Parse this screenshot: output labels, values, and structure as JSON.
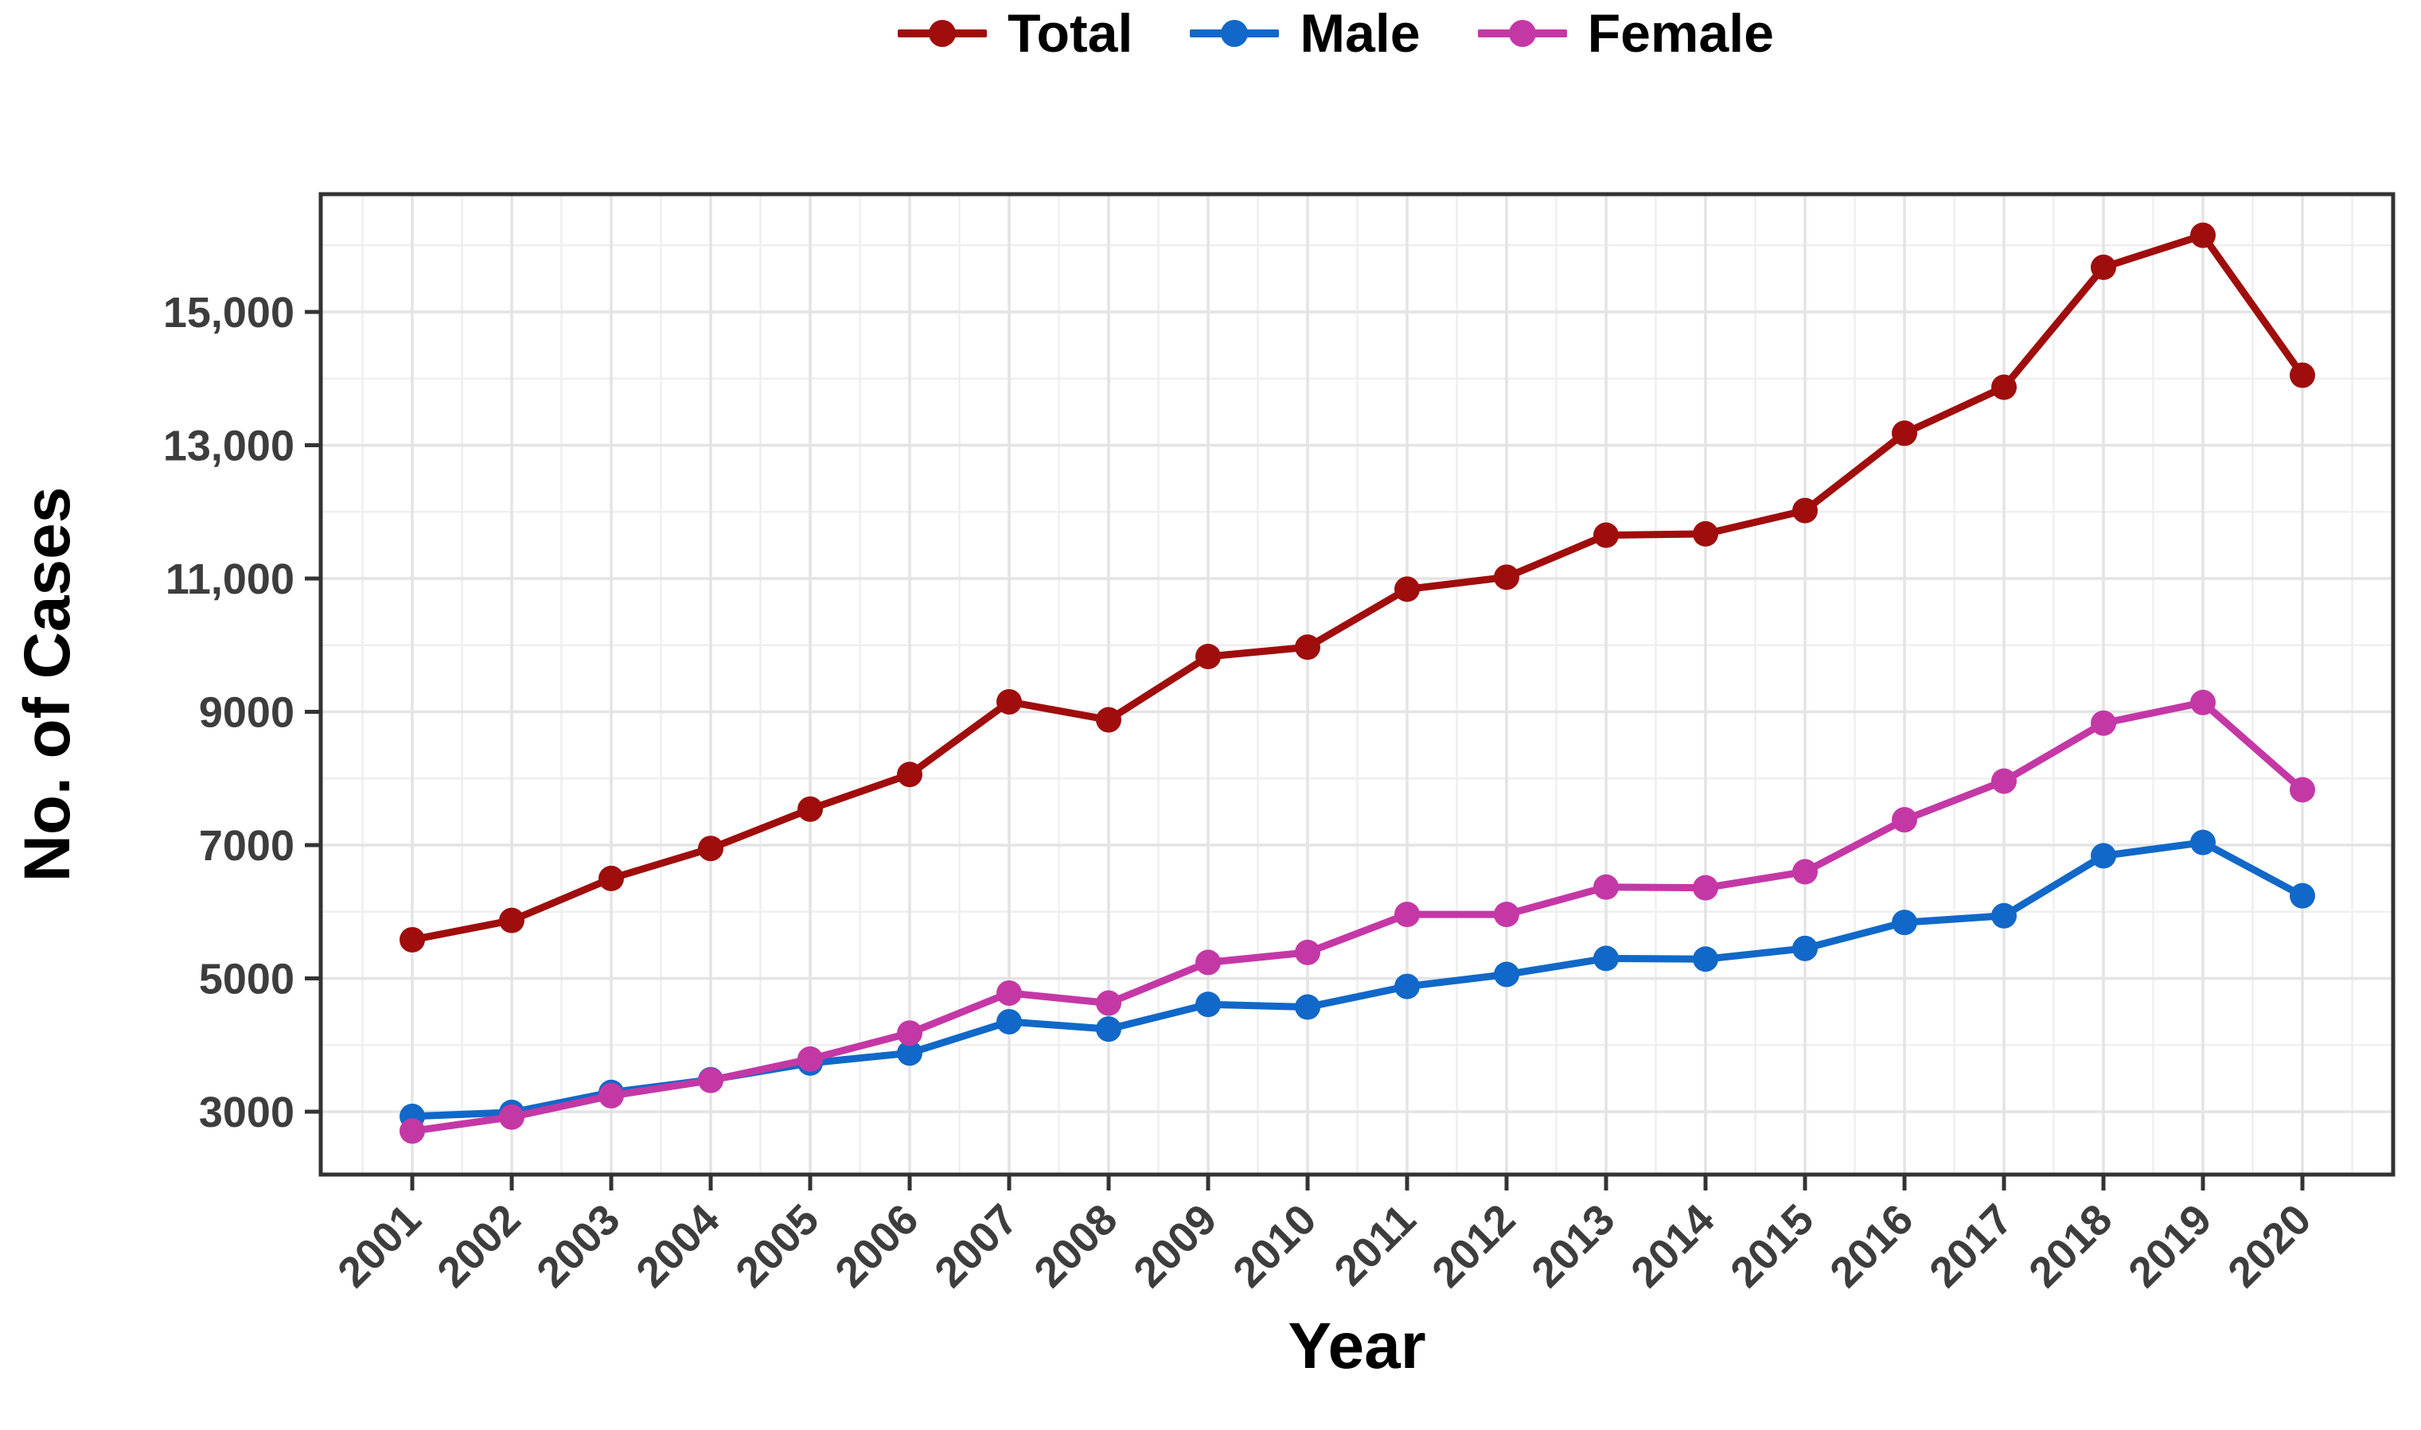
{
  "colors": {
    "total": "#A00D0D",
    "male": "#1168C8",
    "female": "#C438A6",
    "axis_text": "#3D3D3D",
    "axis_line": "#333333",
    "grid_major": "#E4E4E4",
    "grid_minor": "#EFEFEF",
    "background": "#FFFFFF"
  },
  "chart_data": {
    "type": "line",
    "title": "",
    "xlabel": "Year",
    "ylabel": "No. of Cases",
    "legend_position": "top",
    "grid": "major+minor",
    "categories": [
      "2001",
      "2002",
      "2003",
      "2004",
      "2005",
      "2006",
      "2007",
      "2008",
      "2009",
      "2010",
      "2011",
      "2012",
      "2013",
      "2014",
      "2015",
      "2016",
      "2017",
      "2018",
      "2019",
      "2020"
    ],
    "series": [
      {
        "name": "Total",
        "color": "#A00D0D",
        "values": [
          5580,
          5870,
          6500,
          6950,
          7540,
          8060,
          9150,
          8880,
          9830,
          9970,
          10840,
          11020,
          11650,
          11670,
          12020,
          13180,
          13870,
          15670,
          16150,
          14050
        ]
      },
      {
        "name": "Male",
        "color": "#1168C8",
        "values": [
          2930,
          2990,
          3290,
          3480,
          3730,
          3880,
          4350,
          4240,
          4610,
          4570,
          4880,
          5060,
          5300,
          5290,
          5450,
          5840,
          5940,
          6840,
          7040,
          6240
        ]
      },
      {
        "name": "Female",
        "color": "#C438A6",
        "values": [
          2710,
          2920,
          3240,
          3470,
          3790,
          4180,
          4780,
          4630,
          5240,
          5390,
          5960,
          5960,
          6370,
          6360,
          6600,
          7380,
          7960,
          8830,
          9140,
          7830
        ]
      }
    ],
    "ylim": [
      2057,
      16767
    ],
    "yticks": [
      {
        "value": 3000,
        "label": "3000"
      },
      {
        "value": 5000,
        "label": "5000"
      },
      {
        "value": 7000,
        "label": "7000"
      },
      {
        "value": 9000,
        "label": "9000"
      },
      {
        "value": 11000,
        "label": "11,000"
      },
      {
        "value": 13000,
        "label": "13,000"
      },
      {
        "value": 15000,
        "label": "15,000"
      }
    ],
    "yminor": [
      4000,
      6000,
      8000,
      10000,
      12000,
      14000,
      16000
    ]
  }
}
